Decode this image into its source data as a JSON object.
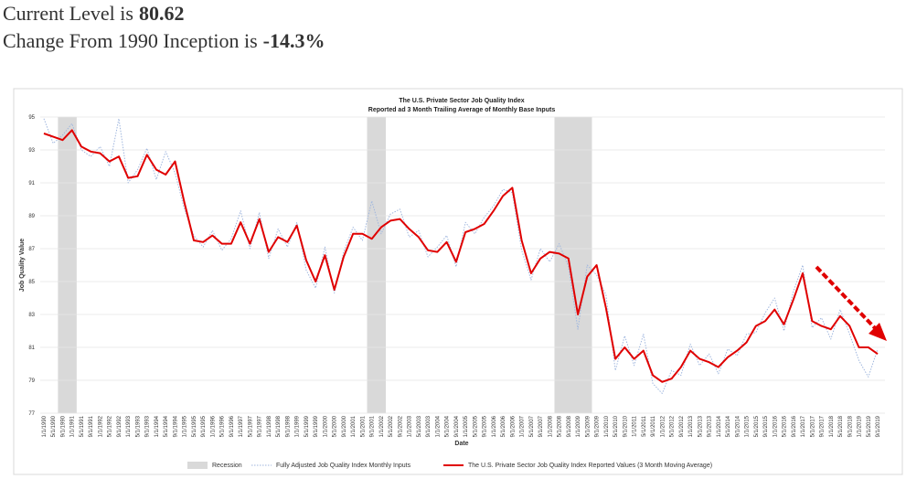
{
  "header": {
    "line1_text": "Current Level is",
    "line1_value": "80.62",
    "line2_text": "Change From 1990 Inception is",
    "line2_value": "-14.3%"
  },
  "chart_data": {
    "type": "line",
    "title": "The U.S. Private Sector Job Quality Index",
    "subtitle": "Reported ad 3 Month Trailing Average of Monthly Base Inputs",
    "x_label": "Date",
    "y_label": "Job Quality Value",
    "ylim": [
      77,
      95
    ],
    "yticks": [
      77,
      79,
      81,
      83,
      85,
      87,
      89,
      91,
      93,
      95
    ],
    "grid": true,
    "categories": [
      "1/1/1990",
      "5/1/1990",
      "9/1/1990",
      "1/1/1991",
      "5/1/1991",
      "9/1/1991",
      "1/1/1992",
      "5/1/1992",
      "9/1/1992",
      "1/1/1993",
      "5/1/1993",
      "9/1/1993",
      "1/1/1994",
      "5/1/1994",
      "9/1/1994",
      "1/1/1995",
      "5/1/1995",
      "9/1/1995",
      "1/1/1996",
      "5/1/1996",
      "9/1/1996",
      "1/1/1997",
      "5/1/1997",
      "9/1/1997",
      "1/1/1998",
      "5/1/1998",
      "9/1/1998",
      "1/1/1999",
      "5/1/1999",
      "9/1/1999",
      "1/1/2000",
      "5/1/2000",
      "9/1/2000",
      "1/1/2001",
      "5/1/2001",
      "9/1/2001",
      "1/1/2002",
      "5/1/2002",
      "9/1/2002",
      "1/1/2003",
      "5/1/2003",
      "9/1/2003",
      "1/1/2004",
      "5/1/2004",
      "9/1/2004",
      "1/1/2005",
      "5/1/2005",
      "9/1/2005",
      "1/1/2006",
      "5/1/2006",
      "9/1/2006",
      "1/1/2007",
      "5/1/2007",
      "9/1/2007",
      "1/1/2008",
      "5/1/2008",
      "9/1/2008",
      "1/1/2009",
      "5/1/2009",
      "9/1/2009",
      "1/1/2010",
      "5/1/2010",
      "9/1/2010",
      "1/1/2011",
      "5/1/2011",
      "9/1/2011",
      "1/1/2012",
      "5/1/2012",
      "9/1/2012",
      "1/1/2013",
      "5/1/2013",
      "9/1/2013",
      "1/1/2014",
      "5/1/2014",
      "9/1/2014",
      "1/1/2015",
      "5/1/2015",
      "9/1/2015",
      "1/1/2016",
      "5/1/2016",
      "9/1/2016",
      "1/1/2017",
      "5/1/2017",
      "9/1/2017",
      "1/1/2018",
      "5/1/2018",
      "9/1/2018",
      "1/1/2019",
      "5/1/2019",
      "9/1/2019"
    ],
    "recessions": {
      "name": "Recession",
      "color": "#d9d9d9",
      "spans": [
        [
          "5/1/1990",
          "1/1/1991"
        ],
        [
          "5/1/2001",
          "1/1/2002"
        ],
        [
          "1/1/2008",
          "5/1/2009"
        ]
      ]
    },
    "series": [
      {
        "name": "Fully Adjusted Job Quality Index Monthly Inputs",
        "color": "#9fb6de",
        "dashed": true,
        "values": [
          94.9,
          93.4,
          93.9,
          94.6,
          93.0,
          92.6,
          93.2,
          92.0,
          94.9,
          91.0,
          91.8,
          93.1,
          91.2,
          92.9,
          91.6,
          89.4,
          87.8,
          87.1,
          88.1,
          86.9,
          87.6,
          89.3,
          87.0,
          89.2,
          86.4,
          88.2,
          87.1,
          88.6,
          85.7,
          84.6,
          87.1,
          84.3,
          86.8,
          88.3,
          87.5,
          89.9,
          87.9,
          89.1,
          89.4,
          87.7,
          88.1,
          86.5,
          87.1,
          87.8,
          85.9,
          88.6,
          87.9,
          88.9,
          89.6,
          90.6,
          90.4,
          86.9,
          85.1,
          87.0,
          86.2,
          87.3,
          85.9,
          82.1,
          86.0,
          85.4,
          84.2,
          79.6,
          81.7,
          79.9,
          81.8,
          78.8,
          78.2,
          79.6,
          79.3,
          81.2,
          79.9,
          80.6,
          79.4,
          80.9,
          80.5,
          81.8,
          81.9,
          83.1,
          84.0,
          82.0,
          84.4,
          86.0,
          82.2,
          82.8,
          81.5,
          83.3,
          81.8,
          80.2,
          79.2,
          80.9
        ]
      },
      {
        "name": "The U.S. Private Sector Job Quality Index Reported Values (3  Month Moving Average)",
        "color": "#e00000",
        "dashed": false,
        "values": [
          94.0,
          93.8,
          93.6,
          94.2,
          93.2,
          92.9,
          92.8,
          92.3,
          92.6,
          91.3,
          91.4,
          92.7,
          91.8,
          91.5,
          92.3,
          89.8,
          87.5,
          87.4,
          87.8,
          87.3,
          87.3,
          88.6,
          87.3,
          88.8,
          86.8,
          87.7,
          87.4,
          88.4,
          86.3,
          85.0,
          86.6,
          84.5,
          86.5,
          87.9,
          87.9,
          87.6,
          88.3,
          88.7,
          88.8,
          88.2,
          87.7,
          86.9,
          86.8,
          87.4,
          86.2,
          88.0,
          88.2,
          88.5,
          89.3,
          90.2,
          90.7,
          87.5,
          85.5,
          86.4,
          86.8,
          86.7,
          86.4,
          83.0,
          85.3,
          86.0,
          83.4,
          80.3,
          81.0,
          80.3,
          80.8,
          79.3,
          78.9,
          79.1,
          79.8,
          80.8,
          80.3,
          80.1,
          79.8,
          80.4,
          80.8,
          81.3,
          82.3,
          82.6,
          83.3,
          82.4,
          83.9,
          85.5,
          82.6,
          82.3,
          82.1,
          82.9,
          82.3,
          81.0,
          81.0,
          80.6
        ]
      }
    ]
  }
}
